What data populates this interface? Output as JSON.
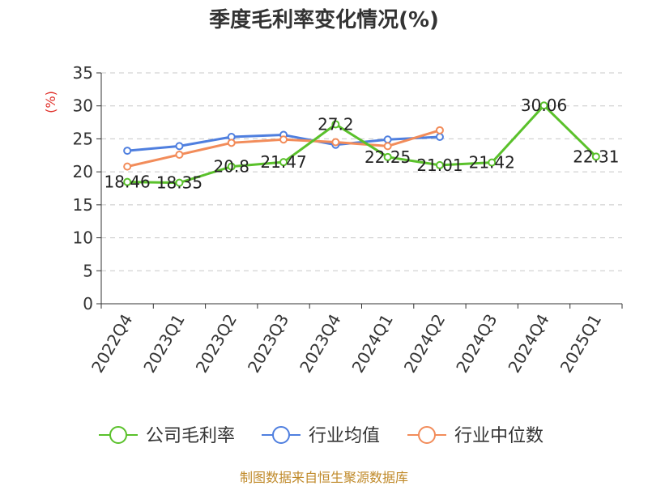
{
  "chart_data": {
    "type": "line",
    "title": "季度毛利率变化情况(%)",
    "ylabel": "(%)",
    "xlabel": "",
    "categories": [
      "2022Q4",
      "2023Q1",
      "2023Q2",
      "2023Q3",
      "2023Q4",
      "2024Q1",
      "2024Q2",
      "2024Q3",
      "2024Q4",
      "2025Q1"
    ],
    "ylim": [
      0,
      35
    ],
    "yticks": [
      0,
      5,
      10,
      15,
      20,
      25,
      30,
      35
    ],
    "grid": true,
    "legend_position": "bottom",
    "series": [
      {
        "name": "公司毛利率",
        "color": "#5ac12b",
        "values": [
          18.46,
          18.35,
          20.8,
          21.47,
          27.2,
          22.25,
          21.01,
          21.42,
          30.06,
          22.31
        ],
        "labels": [
          "18.46",
          "18.35",
          "20.8",
          "21.47",
          "27.2",
          "22.25",
          "21.01",
          "21.42",
          "30.06",
          "22.31"
        ]
      },
      {
        "name": "行业均值",
        "color": "#4f7fdf",
        "values": [
          23.2,
          23.9,
          25.3,
          25.6,
          24.1,
          24.9,
          25.3,
          null,
          null,
          null
        ]
      },
      {
        "name": "行业中位数",
        "color": "#f28c5a",
        "values": [
          20.8,
          22.6,
          24.4,
          24.9,
          24.5,
          23.9,
          26.3,
          null,
          null,
          null
        ]
      }
    ]
  },
  "source": "制图数据来自恒生聚源数据库"
}
